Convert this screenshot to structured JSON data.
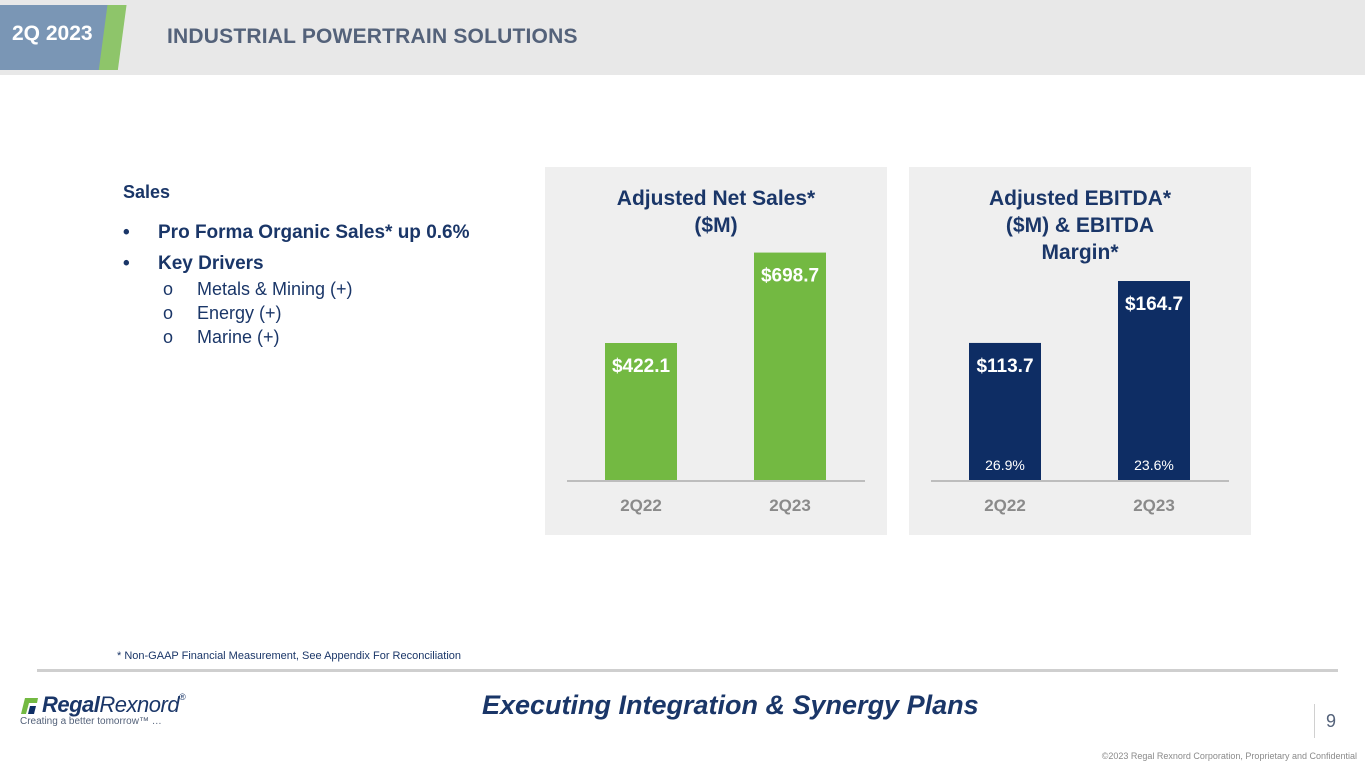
{
  "header": {
    "quarter": "2Q 2023",
    "title": "INDUSTRIAL POWERTRAIN SOLUTIONS"
  },
  "colors": {
    "green": "#73b942",
    "navy": "#0e2d64",
    "tab_blue": "#7a96b5",
    "tab_green": "#8ec56a"
  },
  "sales": {
    "heading": "Sales",
    "bullets": [
      {
        "marker": "•",
        "text": "Pro Forma Organic Sales* up 0.6%"
      },
      {
        "marker": "•",
        "text": "Key Drivers"
      }
    ],
    "drivers": [
      {
        "marker": "o",
        "text": "Metals & Mining (+)"
      },
      {
        "marker": "o",
        "text": "Energy (+)"
      },
      {
        "marker": "o",
        "text": "Marine (+)"
      }
    ]
  },
  "chart_data": [
    {
      "type": "bar",
      "title_lines": [
        "Adjusted Net Sales*",
        "($M)"
      ],
      "categories": [
        "2Q22",
        "2Q23"
      ],
      "values": [
        422.1,
        698.7
      ],
      "labels": [
        "$422.1",
        "$698.7"
      ],
      "ylim": [
        0,
        780
      ],
      "color": "#73b942"
    },
    {
      "type": "bar",
      "title_lines": [
        "Adjusted EBITDA*",
        "($M) & EBITDA",
        "Margin*"
      ],
      "categories": [
        "2Q22",
        "2Q23"
      ],
      "values": [
        113.7,
        164.7
      ],
      "labels": [
        "$113.7",
        "$164.7"
      ],
      "margins": [
        "26.9%",
        "23.6%"
      ],
      "ylim": [
        0,
        210
      ],
      "color": "#0e2d64"
    }
  ],
  "footer": {
    "footnote": "* Non-GAAP Financial Measurement, See Appendix For Reconciliation",
    "logo_bold": "Regal",
    "logo_light": "Rexnord",
    "logo_mark": "®",
    "tagline": "Creating a better tomorrow™ …",
    "slogan": "Executing Integration & Synergy Plans",
    "page": "9",
    "copyright": "©2023 Regal Rexnord Corporation, Proprietary and Confidential"
  }
}
